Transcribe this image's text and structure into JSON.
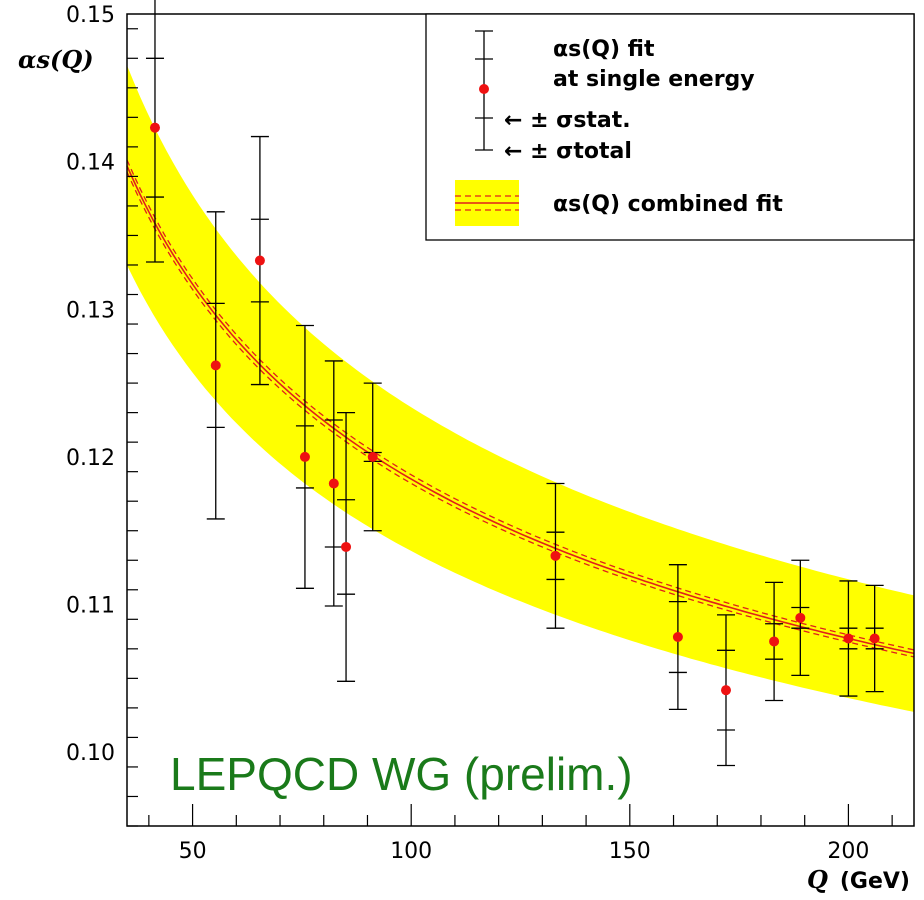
{
  "chart_data": {
    "type": "scatter",
    "xlabel_symbol": "Q",
    "xlabel_unit": "(GeV)",
    "ylabel_symbol": "αs(Q)",
    "xlim": [
      35,
      215
    ],
    "ylim": [
      0.095,
      0.15
    ],
    "x_ticks": [
      50,
      100,
      150,
      200
    ],
    "x_tick_labels": [
      "50",
      "100",
      "150",
      "200"
    ],
    "y_ticks": [
      0.1,
      0.11,
      0.12,
      0.13,
      0.14,
      0.15
    ],
    "y_tick_labels": [
      "0.10",
      "0.11",
      "0.12",
      "0.13",
      "0.14",
      "0.15"
    ],
    "grid": false,
    "legend_position": "top-right",
    "legend": {
      "points_label_1": "αs(Q) fit",
      "points_label_2": "at single energy",
      "stat_label": "← ± σstat.",
      "total_label": "← ± σtotal",
      "band_label": "αs(Q) combined fit"
    },
    "annotation": "LEPQCD WG (prelim.)",
    "points": [
      {
        "Q": 41.4,
        "alpha_s": 0.1423,
        "stat_err": 0.0047,
        "total_err": 0.0091
      },
      {
        "Q": 55.3,
        "alpha_s": 0.1262,
        "stat_err": 0.0042,
        "total_err": 0.0104
      },
      {
        "Q": 65.4,
        "alpha_s": 0.1333,
        "stat_err": 0.0028,
        "total_err": 0.0084
      },
      {
        "Q": 75.7,
        "alpha_s": 0.12,
        "stat_err": 0.0021,
        "total_err": 0.0089
      },
      {
        "Q": 82.3,
        "alpha_s": 0.1182,
        "stat_err": 0.0043,
        "total_err": 0.0083
      },
      {
        "Q": 85.1,
        "alpha_s": 0.1139,
        "stat_err": 0.0032,
        "total_err": 0.0091
      },
      {
        "Q": 91.2,
        "alpha_s": 0.12,
        "stat_err": 0.0003,
        "total_err": 0.005
      },
      {
        "Q": 133.0,
        "alpha_s": 0.1133,
        "stat_err": 0.0016,
        "total_err": 0.0049
      },
      {
        "Q": 161.0,
        "alpha_s": 0.1078,
        "stat_err": 0.0024,
        "total_err": 0.0049
      },
      {
        "Q": 172.0,
        "alpha_s": 0.1042,
        "stat_err": 0.0027,
        "total_err": 0.0051
      },
      {
        "Q": 183.0,
        "alpha_s": 0.1075,
        "stat_err": 0.0012,
        "total_err": 0.004
      },
      {
        "Q": 189.0,
        "alpha_s": 0.1091,
        "stat_err": 0.0007,
        "total_err": 0.0039
      },
      {
        "Q": 200.0,
        "alpha_s": 0.1077,
        "stat_err": 0.0007,
        "total_err": 0.0039
      },
      {
        "Q": 206.0,
        "alpha_s": 0.1077,
        "stat_err": 0.0007,
        "total_err": 0.0036
      }
    ],
    "combined_fit": {
      "alpha_s_mz": 0.1201,
      "mz": 91.19,
      "exp_unc": 0.0003,
      "total_unc": 0.005
    },
    "colors": {
      "band": "#ffff00",
      "fit_line": "#e0201b",
      "points": "#ee1111",
      "errorbars": "#000000",
      "annotation": "#1a7a1a"
    }
  }
}
